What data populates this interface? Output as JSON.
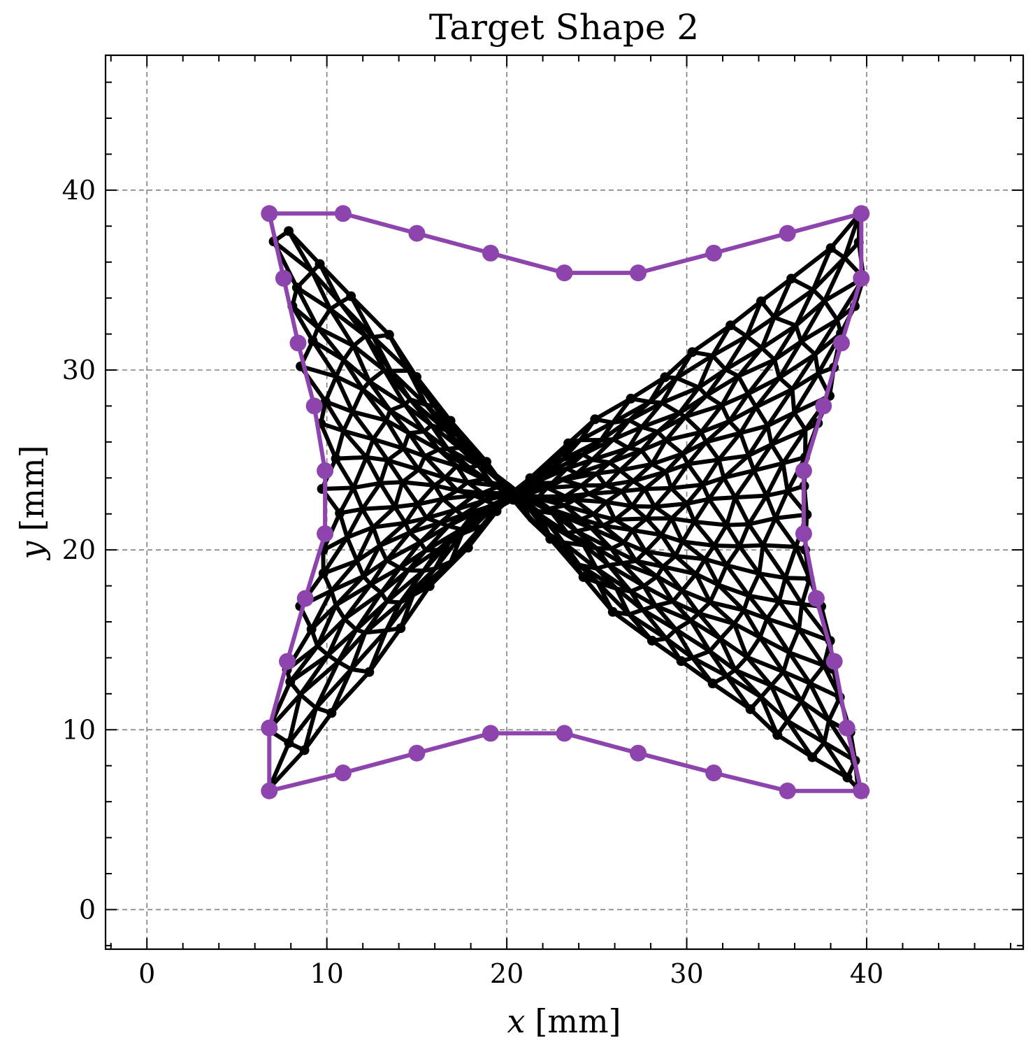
{
  "chart_data": {
    "type": "line",
    "title": "Target Shape 2",
    "xlabel": {
      "var": "x",
      "unit": "[mm]"
    },
    "ylabel": {
      "var": "y",
      "unit": "[mm]"
    },
    "xlim": [
      -2.3,
      48.7
    ],
    "ylim": [
      -2.2,
      47.5
    ],
    "xticks": [
      0,
      10,
      20,
      30,
      40
    ],
    "yticks": [
      0,
      10,
      20,
      30,
      40
    ],
    "xminor_step": 2,
    "yminor_step": 2,
    "grid": true,
    "colors": {
      "mesh": "#000000",
      "target": "#8e44ad",
      "grid": "#808080"
    },
    "series": [
      {
        "kind": "target-boundary",
        "x": [
          6.8,
          10.9,
          15.0,
          19.1,
          23.2,
          27.3,
          31.5,
          35.6,
          39.7,
          39.7,
          38.6,
          37.6,
          36.5,
          36.5,
          37.2,
          38.2,
          38.9,
          39.7,
          35.6,
          31.5,
          27.3,
          23.2,
          19.1,
          15.0,
          10.9,
          6.8,
          6.8,
          7.8,
          8.8,
          9.9,
          9.9,
          9.3,
          8.4,
          7.6,
          6.8
        ],
        "y": [
          38.7,
          38.7,
          37.6,
          36.5,
          35.4,
          35.4,
          36.5,
          37.6,
          38.7,
          35.1,
          31.5,
          28.0,
          24.4,
          20.9,
          17.3,
          13.8,
          10.1,
          6.6,
          6.6,
          7.6,
          8.7,
          9.8,
          9.8,
          8.7,
          7.6,
          6.6,
          10.1,
          13.8,
          17.3,
          20.9,
          24.4,
          28.0,
          31.5,
          35.1,
          38.7
        ]
      },
      {
        "kind": "deformed-mesh",
        "rows": 20,
        "points_per_row": 19
      }
    ]
  }
}
